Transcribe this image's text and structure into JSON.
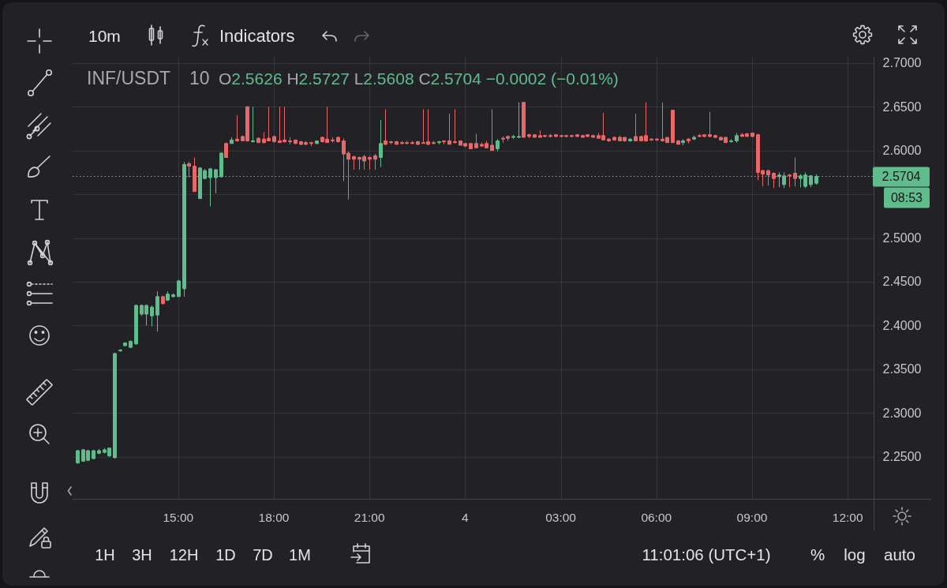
{
  "chart_data": {
    "type": "candlestick",
    "title": "INF/USDT",
    "subtitle": "10",
    "categories": [
      null,
      null,
      null,
      null,
      null,
      null,
      null,
      null,
      null,
      null,
      null,
      null,
      null,
      null,
      null,
      null,
      null,
      null,
      null,
      "15:00",
      null,
      null,
      null,
      null,
      null,
      null,
      null,
      null,
      null,
      null,
      null,
      null,
      null,
      null,
      null,
      null,
      null,
      "18:00",
      null,
      null,
      null,
      null,
      null,
      null,
      null,
      null,
      null,
      null,
      null,
      null,
      null,
      null,
      null,
      null,
      null,
      "21:00",
      null,
      null,
      null,
      null,
      null,
      null,
      null,
      null,
      null,
      null,
      null,
      null,
      null,
      null,
      null,
      null,
      null,
      "4",
      null,
      null,
      null,
      null,
      null,
      null,
      null,
      null,
      null,
      null,
      null,
      null,
      null,
      null,
      null,
      null,
      null,
      "03:00",
      null,
      null,
      null,
      null,
      null,
      null,
      null,
      null,
      null,
      null,
      null,
      null,
      null,
      null,
      null,
      null,
      null,
      "06:00",
      null,
      null,
      null,
      null,
      null,
      null,
      null,
      null,
      null,
      null,
      null,
      null,
      null,
      null,
      null,
      null,
      null,
      "09:00",
      null,
      null,
      null,
      null,
      null,
      null,
      null,
      null,
      null,
      null,
      null,
      null,
      null,
      null,
      null,
      null,
      null,
      "12:00",
      null,
      null,
      null,
      null
    ],
    "ohlc": [
      [
        2.243,
        2.258,
        2.242,
        2.257
      ],
      [
        2.245,
        2.259,
        2.244,
        2.258
      ],
      [
        2.246,
        2.258,
        2.245,
        2.257
      ],
      [
        2.248,
        2.258,
        2.247,
        2.257
      ],
      [
        2.254,
        2.259,
        2.253,
        2.257
      ],
      [
        2.255,
        2.26,
        2.254,
        2.258
      ],
      [
        2.251,
        2.26,
        2.25,
        2.26
      ],
      [
        2.249,
        2.369,
        2.248,
        2.368
      ],
      [
        2.371,
        2.373,
        2.37,
        2.372
      ],
      [
        2.377,
        2.381,
        2.376,
        2.38
      ],
      [
        2.375,
        2.383,
        2.375,
        2.382
      ],
      [
        2.379,
        2.424,
        2.378,
        2.423
      ],
      [
        2.413,
        2.424,
        2.411,
        2.423
      ],
      [
        2.413,
        2.424,
        2.4,
        2.423
      ],
      [
        2.411,
        2.423,
        2.399,
        2.421
      ],
      [
        2.412,
        2.439,
        2.393,
        2.433
      ],
      [
        2.433,
        2.434,
        2.424,
        2.425
      ],
      [
        2.429,
        2.439,
        2.428,
        2.436
      ],
      [
        2.433,
        2.437,
        2.432,
        2.435
      ],
      [
        2.433,
        2.452,
        2.433,
        2.451
      ],
      [
        2.442,
        2.587,
        2.433,
        2.584
      ],
      [
        2.585,
        2.587,
        2.569,
        2.582
      ],
      [
        2.582,
        2.592,
        2.553,
        2.553
      ],
      [
        2.545,
        2.581,
        2.545,
        2.58
      ],
      [
        2.568,
        2.579,
        2.567,
        2.577
      ],
      [
        2.569,
        2.58,
        2.536,
        2.579
      ],
      [
        2.569,
        2.579,
        2.551,
        2.578
      ],
      [
        2.57,
        2.598,
        2.569,
        2.597
      ],
      [
        2.608,
        2.609,
        2.592,
        2.592
      ],
      [
        2.608,
        2.615,
        2.608,
        2.612
      ],
      [
        2.613,
        2.64,
        2.61,
        2.611
      ],
      [
        2.616,
        2.617,
        2.611,
        2.611
      ],
      [
        2.65,
        2.65,
        2.61,
        2.611
      ],
      [
        2.611,
        2.65,
        2.609,
        2.611
      ],
      [
        2.614,
        2.615,
        2.609,
        2.609
      ],
      [
        2.613,
        2.621,
        2.608,
        2.609
      ],
      [
        2.614,
        2.65,
        2.611,
        2.611
      ],
      [
        2.616,
        2.617,
        2.609,
        2.61
      ],
      [
        2.611,
        2.65,
        2.609,
        2.609
      ],
      [
        2.612,
        2.65,
        2.609,
        2.61
      ],
      [
        2.611,
        2.615,
        2.607,
        2.61
      ],
      [
        2.612,
        2.612,
        2.607,
        2.608
      ],
      [
        2.61,
        2.611,
        2.606,
        2.607
      ],
      [
        2.609,
        2.611,
        2.606,
        2.607
      ],
      [
        2.609,
        2.61,
        2.605,
        2.608
      ],
      [
        2.608,
        2.611,
        2.607,
        2.611
      ],
      [
        2.615,
        2.616,
        2.609,
        2.61
      ],
      [
        2.613,
        2.65,
        2.609,
        2.609
      ],
      [
        2.612,
        2.615,
        2.609,
        2.611
      ],
      [
        2.615,
        2.616,
        2.609,
        2.61
      ],
      [
        2.611,
        2.614,
        2.565,
        2.596
      ],
      [
        2.597,
        2.599,
        2.544,
        2.59
      ],
      [
        2.593,
        2.594,
        2.578,
        2.59
      ],
      [
        2.592,
        2.593,
        2.578,
        2.59
      ],
      [
        2.593,
        2.595,
        2.578,
        2.588
      ],
      [
        2.592,
        2.594,
        2.578,
        2.59
      ],
      [
        2.594,
        2.596,
        2.578,
        2.59
      ],
      [
        2.592,
        2.635,
        2.581,
        2.608
      ],
      [
        2.611,
        2.647,
        2.606,
        2.607
      ],
      [
        2.61,
        2.611,
        2.607,
        2.609
      ],
      [
        2.61,
        2.611,
        2.607,
        2.607
      ],
      [
        2.609,
        2.611,
        2.607,
        2.608
      ],
      [
        2.609,
        2.611,
        2.607,
        2.608
      ],
      [
        2.609,
        2.611,
        2.607,
        2.608
      ],
      [
        2.61,
        2.611,
        2.606,
        2.607
      ],
      [
        2.609,
        2.647,
        2.608,
        2.608
      ],
      [
        2.61,
        2.647,
        2.606,
        2.607
      ],
      [
        2.609,
        2.611,
        2.607,
        2.608
      ],
      [
        2.609,
        2.611,
        2.607,
        2.61
      ],
      [
        2.611,
        2.611,
        2.607,
        2.61
      ],
      [
        2.611,
        2.642,
        2.607,
        2.607
      ],
      [
        2.61,
        2.647,
        2.608,
        2.609
      ],
      [
        2.611,
        2.611,
        2.606,
        2.606
      ],
      [
        2.608,
        2.608,
        2.604,
        2.605
      ],
      [
        2.608,
        2.608,
        2.602,
        2.602
      ],
      [
        2.608,
        2.619,
        2.603,
        2.603
      ],
      [
        2.607,
        2.609,
        2.604,
        2.605
      ],
      [
        2.608,
        2.611,
        2.603,
        2.603
      ],
      [
        2.606,
        2.647,
        2.6,
        2.6
      ],
      [
        2.602,
        2.613,
        2.599,
        2.611
      ],
      [
        2.614,
        2.616,
        2.609,
        2.613
      ],
      [
        2.616,
        2.617,
        2.611,
        2.614
      ],
      [
        2.615,
        2.618,
        2.613,
        2.616
      ],
      [
        2.615,
        2.655,
        2.614,
        2.616
      ],
      [
        2.655,
        2.655,
        2.615,
        2.615
      ],
      [
        2.618,
        2.619,
        2.614,
        2.616
      ],
      [
        2.618,
        2.618,
        2.615,
        2.615
      ],
      [
        2.617,
        2.623,
        2.615,
        2.615
      ],
      [
        2.617,
        2.618,
        2.615,
        2.616
      ],
      [
        2.617,
        2.619,
        2.615,
        2.616
      ],
      [
        2.618,
        2.618,
        2.615,
        2.616
      ],
      [
        2.617,
        2.618,
        2.615,
        2.616
      ],
      [
        2.617,
        2.618,
        2.615,
        2.616
      ],
      [
        2.617,
        2.618,
        2.615,
        2.616
      ],
      [
        2.618,
        2.618,
        2.615,
        2.616
      ],
      [
        2.617,
        2.618,
        2.615,
        2.615
      ],
      [
        2.618,
        2.618,
        2.615,
        2.616
      ],
      [
        2.617,
        2.618,
        2.615,
        2.615
      ],
      [
        2.617,
        2.62,
        2.614,
        2.614
      ],
      [
        2.617,
        2.643,
        2.612,
        2.612
      ],
      [
        2.613,
        2.614,
        2.61,
        2.611
      ],
      [
        2.615,
        2.616,
        2.611,
        2.612
      ],
      [
        2.615,
        2.617,
        2.611,
        2.611
      ],
      [
        2.615,
        2.615,
        2.61,
        2.611
      ],
      [
        2.611,
        2.614,
        2.61,
        2.613
      ],
      [
        2.616,
        2.642,
        2.611,
        2.611
      ],
      [
        2.616,
        2.617,
        2.611,
        2.611
      ],
      [
        2.617,
        2.655,
        2.61,
        2.611
      ],
      [
        2.613,
        2.614,
        2.611,
        2.612
      ],
      [
        2.613,
        2.614,
        2.611,
        2.612
      ],
      [
        2.613,
        2.655,
        2.61,
        2.611
      ],
      [
        2.615,
        2.615,
        2.609,
        2.609
      ],
      [
        2.646,
        2.646,
        2.609,
        2.609
      ],
      [
        2.611,
        2.612,
        2.607,
        2.607
      ],
      [
        2.609,
        2.613,
        2.606,
        2.611
      ],
      [
        2.613,
        2.614,
        2.608,
        2.611
      ],
      [
        2.613,
        2.617,
        2.612,
        2.615
      ],
      [
        2.617,
        2.619,
        2.615,
        2.616
      ],
      [
        2.618,
        2.618,
        2.615,
        2.616
      ],
      [
        2.618,
        2.644,
        2.615,
        2.616
      ],
      [
        2.617,
        2.618,
        2.614,
        2.615
      ],
      [
        2.615,
        2.616,
        2.612,
        2.612
      ],
      [
        2.615,
        2.615,
        2.609,
        2.609
      ],
      [
        2.61,
        2.613,
        2.609,
        2.611
      ],
      [
        2.611,
        2.62,
        2.609,
        2.617
      ],
      [
        2.618,
        2.62,
        2.616,
        2.616
      ],
      [
        2.619,
        2.62,
        2.616,
        2.616
      ],
      [
        2.62,
        2.62,
        2.615,
        2.616
      ],
      [
        2.618,
        2.619,
        2.566,
        2.575
      ],
      [
        2.577,
        2.578,
        2.559,
        2.573
      ],
      [
        2.577,
        2.578,
        2.56,
        2.572
      ],
      [
        2.574,
        2.575,
        2.557,
        2.568
      ],
      [
        2.57,
        2.575,
        2.558,
        2.572
      ],
      [
        2.561,
        2.575,
        2.557,
        2.571
      ],
      [
        2.572,
        2.573,
        2.558,
        2.571
      ],
      [
        2.574,
        2.592,
        2.559,
        2.568
      ],
      [
        2.568,
        2.573,
        2.558,
        2.571
      ],
      [
        2.559,
        2.575,
        2.557,
        2.572
      ],
      [
        2.561,
        2.572,
        2.558,
        2.571
      ],
      [
        2.5626,
        2.5727,
        2.5608,
        2.5704
      ],
      null,
      null,
      null,
      null,
      null,
      null,
      null,
      null,
      null,
      null
    ],
    "colors": [
      "#5fbc8c",
      "#5fbc8c",
      "#5fbc8c",
      "#5fbc8c",
      "#5fbc8c",
      "#5fbc8c",
      "#5fbc8c",
      "#5fbc8c",
      "#5fbc8c",
      "#5fbc8c",
      "#5fbc8c",
      "#5fbc8c",
      "#5fbc8c",
      "#5fbc8c",
      "#5fbc8c",
      "#5fbc8c",
      "#e8686a",
      "#5fbc8c",
      "#5fbc8c",
      "#5fbc8c",
      "#5fbc8c",
      "#e8686a",
      "#e8686a",
      "#5fbc8c",
      "#5fbc8c",
      "#5fbc8c",
      "#5fbc8c",
      "#5fbc8c",
      "#e8686a",
      "#5fbc8c",
      "#e8686a",
      "#e8686a",
      "#e8686a",
      "#5fbc8c",
      "#e8686a",
      "#e8686a",
      "#e8686a",
      "#e8686a",
      "#e8686a",
      "#e8686a",
      "#e8686a",
      "#e8686a",
      "#e8686a",
      "#e8686a",
      "#e8686a",
      "#5fbc8c",
      "#e8686a",
      "#e8686a",
      "#e8686a",
      "#e8686a",
      "#e8686a",
      "#e8686a",
      "#e8686a",
      "#e8686a",
      "#e8686a",
      "#e8686a",
      "#e8686a",
      "#5fbc8c",
      "#e8686a",
      "#e8686a",
      "#e8686a",
      "#e8686a",
      "#e8686a",
      "#e8686a",
      "#e8686a",
      "#e8686a",
      "#e8686a",
      "#e8686a",
      "#5fbc8c",
      "#e8686a",
      "#e8686a",
      "#e8686a",
      "#e8686a",
      "#e8686a",
      "#e8686a",
      "#e8686a",
      "#e8686a",
      "#e8686a",
      "#e8686a",
      "#5fbc8c",
      "#e8686a",
      "#e8686a",
      "#5fbc8c",
      "#5fbc8c",
      "#e8686a",
      "#e8686a",
      "#e8686a",
      "#e8686a",
      "#e8686a",
      "#e8686a",
      "#e8686a",
      "#e8686a",
      "#e8686a",
      "#e8686a",
      "#e8686a",
      "#e8686a",
      "#e8686a",
      "#e8686a",
      "#e8686a",
      "#e8686a",
      "#e8686a",
      "#e8686a",
      "#e8686a",
      "#e8686a",
      "#5fbc8c",
      "#e8686a",
      "#e8686a",
      "#e8686a",
      "#e8686a",
      "#e8686a",
      "#e8686a",
      "#e8686a",
      "#e8686a",
      "#e8686a",
      "#5fbc8c",
      "#e8686a",
      "#5fbc8c",
      "#e8686a",
      "#e8686a",
      "#e8686a",
      "#e8686a",
      "#e8686a",
      "#e8686a",
      "#5fbc8c",
      "#5fbc8c",
      "#e8686a",
      "#e8686a",
      "#e8686a",
      "#e8686a",
      "#e8686a",
      "#e8686a",
      "#e8686a",
      "#5fbc8c",
      "#5fbc8c",
      "#e8686a",
      "#e8686a",
      "#5fbc8c",
      "#5fbc8c",
      "#5fbc8c",
      "#5fbc8c",
      null,
      null,
      null,
      null,
      null,
      null,
      null,
      null,
      null,
      null
    ],
    "ylim": [
      2.202,
      2.707
    ],
    "yticks": [
      {
        "value": 2.25,
        "label": "2.2500"
      },
      {
        "value": 2.3,
        "label": "2.3000"
      },
      {
        "value": 2.35,
        "label": "2.3500"
      },
      {
        "value": 2.4,
        "label": "2.4000"
      },
      {
        "value": 2.45,
        "label": "2.4500"
      },
      {
        "value": 2.5,
        "label": "2.5000"
      },
      {
        "value": 2.55,
        "label": null
      },
      {
        "value": 2.6,
        "label": "2.6000"
      },
      {
        "value": 2.65,
        "label": "2.6500"
      },
      {
        "value": 2.7,
        "label": "2.7000"
      }
    ],
    "grid": true,
    "ref_lines": [
      {
        "axis": "y",
        "value": 2.5704,
        "label": "2.5704",
        "color": "#5fbc8c",
        "line_style": "dotted"
      }
    ],
    "annotations": [
      "10m",
      "Indicators",
      "O2.5626 H2.5727 L2.5608 C2.5704 −0.0002 (−0.01%)",
      "08:53",
      "1H",
      "3H",
      "12H",
      "1D",
      "7D",
      "1M",
      "11:01:06 (UTC+1)",
      "%",
      "log",
      "auto"
    ]
  }
}
